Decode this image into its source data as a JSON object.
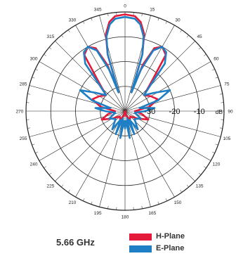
{
  "chart_data": {
    "type": "polar",
    "title": "",
    "angle_labels": [
      "0",
      "15",
      "30",
      "45",
      "60",
      "75",
      "90",
      "105",
      "120",
      "135",
      "150",
      "165",
      "180",
      "195",
      "210",
      "225",
      "240",
      "255",
      "270",
      "285",
      "300",
      "315",
      "330",
      "345"
    ],
    "radial_labels": [
      "-30",
      "-20",
      "-10"
    ],
    "radial_unit": "dB",
    "r_range": [
      -40,
      0
    ],
    "rings_db": [
      -40,
      -30,
      -20,
      -10,
      0
    ],
    "grid": true,
    "legend_position": "bottom-right",
    "series": [
      {
        "name": "H-Plane",
        "color": "#e31a3a",
        "points": [
          {
            "angle": 0,
            "db": -1
          },
          {
            "angle": 6,
            "db": -1.5
          },
          {
            "angle": 10,
            "db": -3.5
          },
          {
            "angle": 14,
            "db": -8
          },
          {
            "angle": 17,
            "db": -16
          },
          {
            "angle": 19,
            "db": -32
          },
          {
            "angle": 21,
            "db": -20
          },
          {
            "angle": 25,
            "db": -12
          },
          {
            "angle": 30,
            "db": -10
          },
          {
            "angle": 36,
            "db": -12
          },
          {
            "angle": 42,
            "db": -24
          },
          {
            "angle": 50,
            "db": -30
          },
          {
            "angle": 60,
            "db": -28
          },
          {
            "angle": 70,
            "db": -26
          },
          {
            "angle": 80,
            "db": -30
          },
          {
            "angle": 90,
            "db": -36
          },
          {
            "angle": 100,
            "db": -33
          },
          {
            "angle": 110,
            "db": -30
          },
          {
            "angle": 120,
            "db": -34
          },
          {
            "angle": 135,
            "db": -37
          },
          {
            "angle": 150,
            "db": -36
          },
          {
            "angle": 165,
            "db": -38
          },
          {
            "angle": 180,
            "db": -40
          },
          {
            "angle": 195,
            "db": -38
          },
          {
            "angle": 210,
            "db": -36
          },
          {
            "angle": 225,
            "db": -37
          },
          {
            "angle": 240,
            "db": -34
          },
          {
            "angle": 250,
            "db": -30
          },
          {
            "angle": 260,
            "db": -33
          },
          {
            "angle": 270,
            "db": -36
          },
          {
            "angle": 280,
            "db": -30
          },
          {
            "angle": 290,
            "db": -26
          },
          {
            "angle": 300,
            "db": -28
          },
          {
            "angle": 310,
            "db": -30
          },
          {
            "angle": 318,
            "db": -24
          },
          {
            "angle": 324,
            "db": -12
          },
          {
            "angle": 330,
            "db": -10
          },
          {
            "angle": 335,
            "db": -12
          },
          {
            "angle": 339,
            "db": -20
          },
          {
            "angle": 341,
            "db": -32
          },
          {
            "angle": 343,
            "db": -16
          },
          {
            "angle": 346,
            "db": -8
          },
          {
            "angle": 350,
            "db": -3.5
          },
          {
            "angle": 354,
            "db": -1.5
          }
        ]
      },
      {
        "name": "E-Plane",
        "color": "#1f7fc4",
        "points": [
          {
            "angle": 0,
            "db": -2
          },
          {
            "angle": 6,
            "db": -2.5
          },
          {
            "angle": 10,
            "db": -4.5
          },
          {
            "angle": 14,
            "db": -9
          },
          {
            "angle": 17,
            "db": -16
          },
          {
            "angle": 19,
            "db": -32
          },
          {
            "angle": 21,
            "db": -22
          },
          {
            "angle": 25,
            "db": -13
          },
          {
            "angle": 30,
            "db": -10
          },
          {
            "angle": 35,
            "db": -11
          },
          {
            "angle": 40,
            "db": -15
          },
          {
            "angle": 45,
            "db": -26
          },
          {
            "angle": 50,
            "db": -30
          },
          {
            "angle": 58,
            "db": -26
          },
          {
            "angle": 65,
            "db": -20
          },
          {
            "angle": 72,
            "db": -26
          },
          {
            "angle": 78,
            "db": -34
          },
          {
            "angle": 84,
            "db": -28
          },
          {
            "angle": 90,
            "db": -32
          },
          {
            "angle": 100,
            "db": -36
          },
          {
            "angle": 115,
            "db": -33
          },
          {
            "angle": 130,
            "db": -35
          },
          {
            "angle": 145,
            "db": -31
          },
          {
            "angle": 152,
            "db": -36
          },
          {
            "angle": 158,
            "db": -30
          },
          {
            "angle": 164,
            "db": -37
          },
          {
            "angle": 170,
            "db": -29
          },
          {
            "angle": 175,
            "db": -36
          },
          {
            "angle": 180,
            "db": -33
          },
          {
            "angle": 185,
            "db": -36
          },
          {
            "angle": 190,
            "db": -29
          },
          {
            "angle": 196,
            "db": -37
          },
          {
            "angle": 202,
            "db": -30
          },
          {
            "angle": 208,
            "db": -36
          },
          {
            "angle": 215,
            "db": -31
          },
          {
            "angle": 230,
            "db": -35
          },
          {
            "angle": 245,
            "db": -33
          },
          {
            "angle": 260,
            "db": -36
          },
          {
            "angle": 270,
            "db": -32
          },
          {
            "angle": 276,
            "db": -28
          },
          {
            "angle": 282,
            "db": -34
          },
          {
            "angle": 288,
            "db": -26
          },
          {
            "angle": 295,
            "db": -20
          },
          {
            "angle": 302,
            "db": -26
          },
          {
            "angle": 310,
            "db": -30
          },
          {
            "angle": 315,
            "db": -26
          },
          {
            "angle": 320,
            "db": -15
          },
          {
            "angle": 325,
            "db": -11
          },
          {
            "angle": 330,
            "db": -10
          },
          {
            "angle": 335,
            "db": -13
          },
          {
            "angle": 339,
            "db": -22
          },
          {
            "angle": 341,
            "db": -32
          },
          {
            "angle": 343,
            "db": -16
          },
          {
            "angle": 346,
            "db": -9
          },
          {
            "angle": 350,
            "db": -4.5
          },
          {
            "angle": 354,
            "db": -2.5
          }
        ]
      }
    ]
  },
  "frequency_label": "5.66  GHz",
  "legend": [
    {
      "label": "H-Plane",
      "color": "#e31a3a"
    },
    {
      "label": "E-Plane",
      "color": "#1f7fc4"
    }
  ]
}
